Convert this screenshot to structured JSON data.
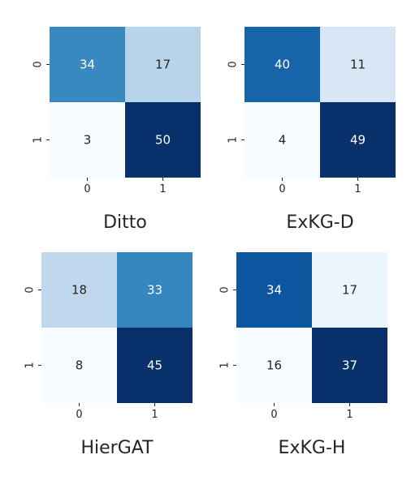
{
  "chart_data": [
    {
      "type": "heatmap",
      "title": "Ditto",
      "x_categories": [
        "0",
        "1"
      ],
      "y_categories": [
        "0",
        "1"
      ],
      "values": [
        [
          34,
          17
        ],
        [
          3,
          50
        ]
      ],
      "colormap": "Blues"
    },
    {
      "type": "heatmap",
      "title": "ExKG-D",
      "x_categories": [
        "0",
        "1"
      ],
      "y_categories": [
        "0",
        "1"
      ],
      "values": [
        [
          40,
          11
        ],
        [
          4,
          49
        ]
      ],
      "colormap": "Blues"
    },
    {
      "type": "heatmap",
      "title": "HierGAT",
      "x_categories": [
        "0",
        "1"
      ],
      "y_categories": [
        "0",
        "1"
      ],
      "values": [
        [
          18,
          33
        ],
        [
          8,
          45
        ]
      ],
      "colormap": "Blues"
    },
    {
      "type": "heatmap",
      "title": "ExKG-H",
      "x_categories": [
        "0",
        "1"
      ],
      "y_categories": [
        "0",
        "1"
      ],
      "values": [
        [
          34,
          17
        ],
        [
          16,
          37
        ]
      ],
      "colormap": "Blues"
    }
  ],
  "colors": {
    "text_dark": "#262626",
    "text_light": "#ffffff",
    "colormap_stops": [
      "#f7fbff",
      "#deebf7",
      "#c6dbef",
      "#9ecae1",
      "#6baed6",
      "#4292c6",
      "#2171b5",
      "#08519c",
      "#08306b"
    ]
  }
}
